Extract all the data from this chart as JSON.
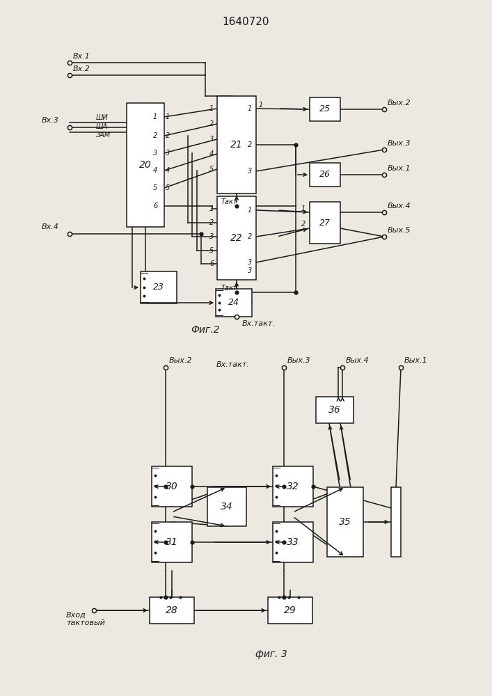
{
  "title": "1640720",
  "bg_color": "#ede9e0",
  "line_color": "#1a1a1a",
  "box_color": "#ffffff",
  "fig2_label": "Фиг.2",
  "fig3_label": "фиг. 3"
}
